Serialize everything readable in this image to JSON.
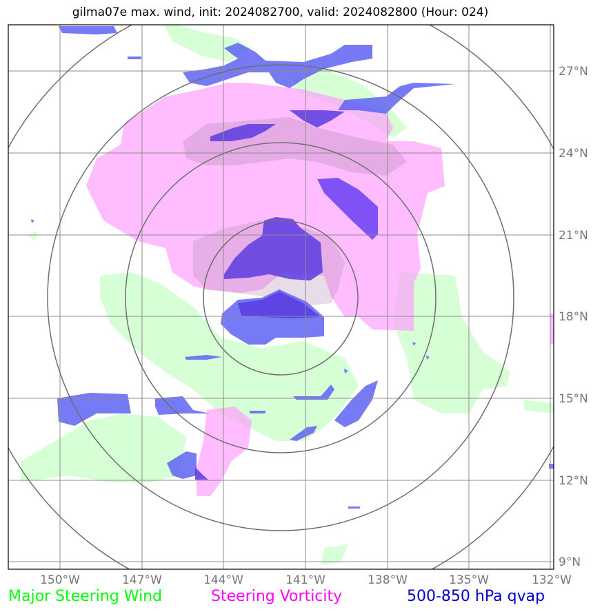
{
  "title": "gilma07e max. wind, init: 2024082700, valid: 2024082800 (Hour: 024)",
  "map": {
    "lon_labels": [
      "150°W",
      "147°W",
      "144°W",
      "141°W",
      "138°W",
      "135°W",
      "132°W"
    ],
    "lat_labels": [
      "27°N",
      "24°N",
      "21°N",
      "18°N",
      "15°N",
      "12°N",
      "9°N"
    ],
    "colors": {
      "grid": "#8c8c8c",
      "frame": "#000000",
      "range_rings": "#6e6e6e",
      "wind": "#ccffcc",
      "vorticity": "#ff99ff",
      "qvap_light": "#5f63f3",
      "qvap_dark": "#5a3be0"
    }
  },
  "legend": {
    "wind": {
      "label": "Major Steering Wind",
      "color": "#00ff00"
    },
    "vorticity": {
      "label": "Steering Vorticity",
      "color": "#ff00ff"
    },
    "qvap": {
      "label": "500-850 hPa qvap",
      "color": "#0000cc"
    }
  }
}
